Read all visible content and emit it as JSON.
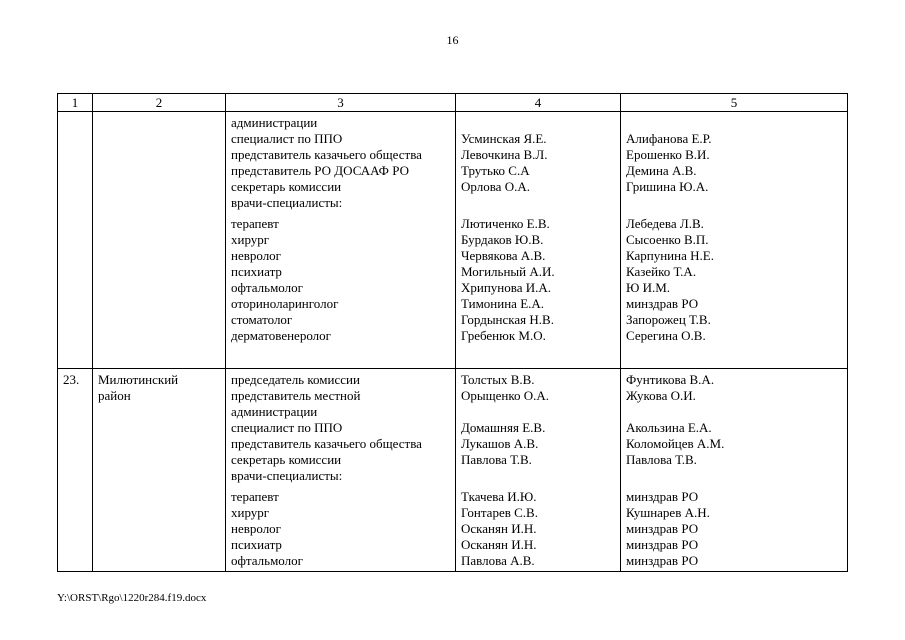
{
  "page": {
    "number": "16",
    "footer": "Y:\\ORST\\Rgo\\1220r284.f19.docx"
  },
  "table": {
    "headers": [
      "1",
      "2",
      "3",
      "4",
      "5"
    ],
    "rows": [
      {
        "num": "",
        "territory": "",
        "lines": {
          "roles": [
            "администрации",
            "специалист по ППО",
            "представитель казачьего общества",
            "представитель РО ДОСААФ РО",
            "секретарь комиссии",
            "врачи-специалисты:",
            "",
            "терапевт",
            "хирург",
            "невролог",
            "психиатр",
            "офтальмолог",
            "оториноларинголог",
            "стоматолог",
            "дерматовенеролог"
          ],
          "members": [
            "",
            "Усминская Я.Е.",
            "Левочкина В.Л.",
            "Трутько С.А",
            "Орлова О.А.",
            "",
            "",
            "Лютиченко Е.В.",
            "Бурдаков Ю.В.",
            "Червякова А.В.",
            "Могильный А.И.",
            "Хрипунова И.А.",
            "Тимонина Е.А.",
            "Гордынская Н.В.",
            "Гребенюк М.О."
          ],
          "reserve": [
            "",
            "Алифанова Е.Р.",
            "Ерошенко В.И.",
            "Демина А.В.",
            "Гришина Ю.А.",
            "",
            "",
            "Лебедева Л.В.",
            "Сысоенко В.П.",
            "Карпунина Н.Е.",
            "Казейко Т.А.",
            "Ю И.М.",
            "минздрав РО",
            "Запорожец Т.В.",
            "Серегина О.В."
          ]
        }
      },
      {
        "num": "23.",
        "territory": "Милютинский район",
        "lines": {
          "roles": [
            "председатель комиссии",
            "представитель местной",
            "администрации",
            "специалист по ППО",
            "представитель казачьего общества",
            "секретарь комиссии",
            "врачи-специалисты:",
            "",
            "терапевт",
            "хирург",
            "невролог",
            "психиатр",
            "офтальмолог"
          ],
          "members": [
            "Толстых В.В.",
            "Орыщенко О.А.",
            "",
            "Домашняя Е.В.",
            "Лукашов А.В.",
            "Павлова Т.В.",
            "",
            "",
            "Ткачева И.Ю.",
            "Гонтарев С.В.",
            "Осканян И.Н.",
            "Осканян И.Н.",
            "Павлова А.В."
          ],
          "reserve": [
            "Фунтикова В.А.",
            "Жукова О.И.",
            "",
            "Акользина Е.А.",
            "Коломойцев А.М.",
            "Павлова Т.В.",
            "",
            "",
            "минздрав РО",
            "Кушнарев А.Н.",
            "минздрав РО",
            "минздрав РО",
            "минздрав РО"
          ]
        }
      }
    ]
  }
}
